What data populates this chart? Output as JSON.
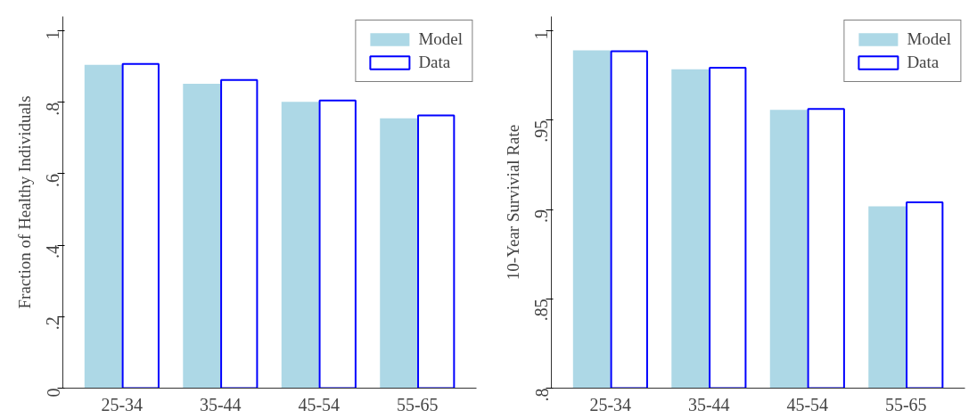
{
  "chart_data": [
    {
      "type": "bar",
      "ylabel": "Fraction of Healthy Individuals",
      "categories": [
        "25-34",
        "35-44",
        "45-54",
        "55-65"
      ],
      "ylim": [
        0,
        1.04
      ],
      "yticks": [
        {
          "value": 0,
          "label": "0"
        },
        {
          "value": 0.2,
          "label": ".2"
        },
        {
          "value": 0.4,
          "label": ".4"
        },
        {
          "value": 0.6,
          "label": ".6"
        },
        {
          "value": 0.8,
          "label": ".8"
        },
        {
          "value": 1,
          "label": "1"
        }
      ],
      "grid": false,
      "legend": "top right",
      "series": [
        {
          "name": "Model",
          "color": "#add8e6",
          "values": [
            0.905,
            0.852,
            0.801,
            0.755
          ]
        },
        {
          "name": "Data",
          "color": "#0000ff",
          "values": [
            0.907,
            0.862,
            0.805,
            0.763
          ]
        }
      ]
    },
    {
      "type": "bar",
      "ylabel": "10-Year Survivial Rate",
      "categories": [
        "25-34",
        "35-44",
        "45-54",
        "55-65"
      ],
      "ylim": [
        0.8,
        1.008
      ],
      "yticks": [
        {
          "value": 0.8,
          "label": ".8"
        },
        {
          "value": 0.85,
          "label": ".85"
        },
        {
          "value": 0.9,
          "label": ".9"
        },
        {
          "value": 0.95,
          "label": ".95"
        },
        {
          "value": 1,
          "label": "1"
        }
      ],
      "grid": false,
      "legend": "top right",
      "series": [
        {
          "name": "Model",
          "color": "#add8e6",
          "values": [
            0.989,
            0.9785,
            0.9557,
            0.9018
          ]
        },
        {
          "name": "Data",
          "color": "#0000ff",
          "values": [
            0.9885,
            0.9793,
            0.9562,
            0.904
          ]
        }
      ]
    }
  ]
}
